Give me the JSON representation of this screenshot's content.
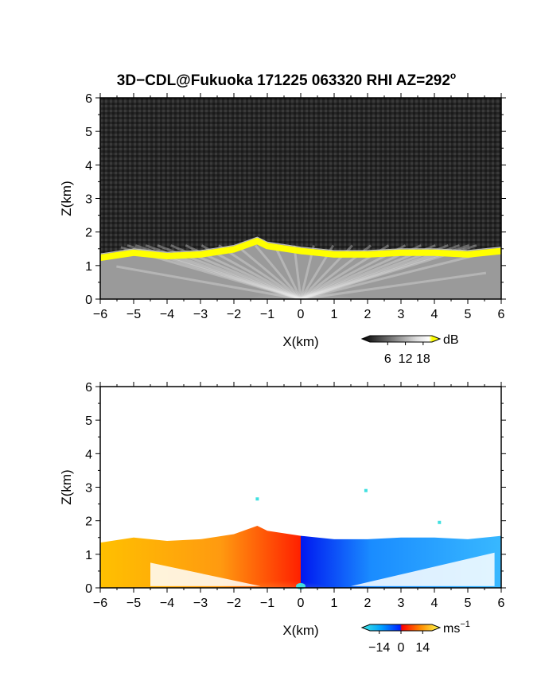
{
  "chart_data": [
    {
      "type": "heatmap",
      "title": "3D−CDL@Fukuoka 171225 063320 RHI AZ=292",
      "title_superscript": "o",
      "xlabel": "X(km)",
      "ylabel": "Z(km)",
      "xlim": [
        -6,
        6
      ],
      "ylim": [
        0,
        6
      ],
      "x_ticks": [
        "−6",
        "−5",
        "−4",
        "−3",
        "−2",
        "−1",
        "0",
        "1",
        "2",
        "3",
        "4",
        "5",
        "6"
      ],
      "y_ticks": [
        "0",
        "1",
        "2",
        "3",
        "4",
        "5",
        "6"
      ],
      "quantity": "signal-to-noise ratio",
      "colorbar": {
        "unit": "dB",
        "ticks": [
          "6",
          "12",
          "18"
        ],
        "range": [
          0,
          21
        ],
        "colors": [
          "#000000",
          "#ffffff",
          "#ffff00"
        ]
      },
      "background_color": "#282828",
      "boundary_layer_top_km": [
        {
          "x": -6,
          "z": 1.35
        },
        {
          "x": -5,
          "z": 1.5
        },
        {
          "x": -4,
          "z": 1.4
        },
        {
          "x": -3,
          "z": 1.45
        },
        {
          "x": -2,
          "z": 1.6
        },
        {
          "x": -1.3,
          "z": 1.85
        },
        {
          "x": -1,
          "z": 1.7
        },
        {
          "x": 0,
          "z": 1.55
        },
        {
          "x": 1,
          "z": 1.45
        },
        {
          "x": 2,
          "z": 1.45
        },
        {
          "x": 3,
          "z": 1.5
        },
        {
          "x": 4,
          "z": 1.5
        },
        {
          "x": 5,
          "z": 1.45
        },
        {
          "x": 6,
          "z": 1.55
        }
      ]
    },
    {
      "type": "heatmap",
      "xlabel": "X(km)",
      "ylabel": "Z(km)",
      "xlim": [
        -6,
        6
      ],
      "ylim": [
        0,
        6
      ],
      "x_ticks": [
        "−6",
        "−5",
        "−4",
        "−3",
        "−2",
        "−1",
        "0",
        "1",
        "2",
        "3",
        "4",
        "5",
        "6"
      ],
      "y_ticks": [
        "0",
        "1",
        "2",
        "3",
        "4",
        "5",
        "6"
      ],
      "quantity": "radial velocity",
      "colorbar": {
        "unit": "ms",
        "unit_superscript": "−1",
        "ticks": [
          "−14",
          "0",
          "14"
        ],
        "range": [
          -20,
          20
        ],
        "colors": [
          "#40e0e0",
          "#00a0ff",
          "#0030ff",
          "#ff0000",
          "#ff8000",
          "#ffff40"
        ]
      },
      "positive_side_color": "#ff9a10",
      "negative_side_color": "#1a8cff",
      "boundary_layer_top_km": [
        {
          "x": -6,
          "z": 1.35
        },
        {
          "x": -5,
          "z": 1.5
        },
        {
          "x": -4,
          "z": 1.4
        },
        {
          "x": -3,
          "z": 1.45
        },
        {
          "x": -2,
          "z": 1.6
        },
        {
          "x": -1.3,
          "z": 1.85
        },
        {
          "x": -1,
          "z": 1.7
        },
        {
          "x": 0,
          "z": 1.55
        },
        {
          "x": 1,
          "z": 1.45
        },
        {
          "x": 2,
          "z": 1.45
        },
        {
          "x": 3,
          "z": 1.5
        },
        {
          "x": 4,
          "z": 1.5
        },
        {
          "x": 5,
          "z": 1.45
        },
        {
          "x": 6,
          "z": 1.55
        }
      ]
    }
  ]
}
